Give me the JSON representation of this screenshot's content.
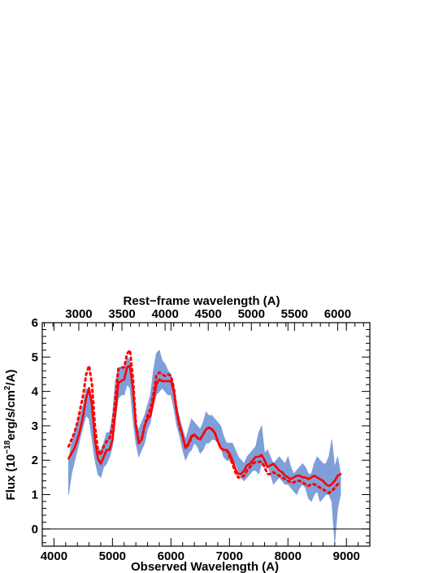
{
  "chart_data": {
    "type": "line",
    "xlabel": "Observed Wavelength (A)",
    "x2label": "Rest−frame wavelength (A)",
    "ylabel_parts": {
      "prefix": "Flux (10",
      "exp1": "−18",
      "mid": "erg/s/cm",
      "exp2": "2",
      "suffix": "/A)"
    },
    "xlim": [
      3800,
      9400
    ],
    "ylim": [
      -0.5,
      6
    ],
    "x_ticks": [
      4000,
      5000,
      6000,
      7000,
      8000,
      9000
    ],
    "y_ticks": [
      0,
      1,
      2,
      3,
      4,
      5,
      6
    ],
    "x2_ticks": [
      3000,
      3500,
      4000,
      4500,
      5000,
      5500,
      6000
    ],
    "x2_factor": 1.475,
    "zero_line": true,
    "colors": {
      "observed": "#7f9fd9",
      "model": "#ff0000",
      "zero_line": "#000000"
    },
    "series": [
      {
        "style": "filled-band",
        "x": [
          4250,
          4300,
          4400,
          4500,
          4550,
          4600,
          4650,
          4700,
          4750,
          4800,
          4850,
          4900,
          4950,
          5000,
          5050,
          5100,
          5150,
          5200,
          5250,
          5300,
          5350,
          5400,
          5450,
          5500,
          5550,
          5600,
          5650,
          5700,
          5750,
          5800,
          5850,
          5900,
          5950,
          6000,
          6050,
          6100,
          6150,
          6200,
          6250,
          6300,
          6350,
          6400,
          6450,
          6500,
          6550,
          6600,
          6650,
          6700,
          6750,
          6800,
          6850,
          6900,
          6950,
          7000,
          7050,
          7100,
          7150,
          7200,
          7250,
          7300,
          7350,
          7400,
          7450,
          7500,
          7550,
          7600,
          7650,
          7700,
          7750,
          7800,
          7850,
          7900,
          7950,
          8000,
          8050,
          8100,
          8150,
          8200,
          8250,
          8300,
          8350,
          8400,
          8450,
          8500,
          8550,
          8600,
          8650,
          8700,
          8750,
          8800,
          8850,
          8900
        ],
        "y_low": [
          1.0,
          1.6,
          2.3,
          3.0,
          3.3,
          3.2,
          2.6,
          2.0,
          1.6,
          1.5,
          1.8,
          1.9,
          2.1,
          2.4,
          3.2,
          3.8,
          3.9,
          3.9,
          4.2,
          4.1,
          3.2,
          2.5,
          2.1,
          2.3,
          2.5,
          2.9,
          3.1,
          3.6,
          3.9,
          4.0,
          4.1,
          4.0,
          3.9,
          3.9,
          3.5,
          3.0,
          2.7,
          2.3,
          2.0,
          2.2,
          2.3,
          2.5,
          2.4,
          2.2,
          2.3,
          2.5,
          2.5,
          2.6,
          2.6,
          2.5,
          2.4,
          2.1,
          2.0,
          2.0,
          2.0,
          1.9,
          1.7,
          1.5,
          1.4,
          1.5,
          1.6,
          1.7,
          1.7,
          1.6,
          1.9,
          1.8,
          1.9,
          1.6,
          1.3,
          1.4,
          1.5,
          1.4,
          1.3,
          1.3,
          1.2,
          1.1,
          1.0,
          1.2,
          1.3,
          1.2,
          0.9,
          0.8,
          1.0,
          1.1,
          0.8,
          0.9,
          1.0,
          1.0,
          0.8,
          -0.4,
          0.6,
          1.0
        ],
        "y_high": [
          2.0,
          2.5,
          3.1,
          3.6,
          4.1,
          4.0,
          3.4,
          2.6,
          2.3,
          2.3,
          2.5,
          2.8,
          2.8,
          3.3,
          4.3,
          4.7,
          4.7,
          4.7,
          5.0,
          4.9,
          3.9,
          3.0,
          2.9,
          3.1,
          3.3,
          3.6,
          3.9,
          4.6,
          5.1,
          5.2,
          4.9,
          4.8,
          4.6,
          4.5,
          4.2,
          3.6,
          3.2,
          2.9,
          2.6,
          2.9,
          3.2,
          3.1,
          3.0,
          2.9,
          3.1,
          3.4,
          3.3,
          3.3,
          3.2,
          3.1,
          3.0,
          2.7,
          2.5,
          2.5,
          2.5,
          2.3,
          2.1,
          2.0,
          1.9,
          2.1,
          2.2,
          2.3,
          2.4,
          2.8,
          3.0,
          2.2,
          2.3,
          2.1,
          1.9,
          2.0,
          2.1,
          2.0,
          1.9,
          2.1,
          1.8,
          1.6,
          1.7,
          1.8,
          1.9,
          1.8,
          1.6,
          1.6,
          1.9,
          2.1,
          2.0,
          1.9,
          1.9,
          2.1,
          2.6,
          1.8,
          2.1,
          1.6
        ]
      },
      {
        "style": "solid",
        "x": [
          4250,
          4300,
          4350,
          4400,
          4450,
          4500,
          4550,
          4600,
          4650,
          4700,
          4750,
          4800,
          4850,
          4900,
          4950,
          5000,
          5050,
          5100,
          5150,
          5200,
          5250,
          5300,
          5350,
          5400,
          5450,
          5500,
          5550,
          5600,
          5650,
          5700,
          5750,
          5800,
          5850,
          5900,
          5950,
          6000,
          6050,
          6100,
          6150,
          6200,
          6250,
          6300,
          6350,
          6400,
          6450,
          6500,
          6550,
          6600,
          6650,
          6700,
          6750,
          6800,
          6850,
          6900,
          6950,
          7000,
          7050,
          7100,
          7150,
          7200,
          7250,
          7300,
          7350,
          7400,
          7450,
          7500,
          7550,
          7600,
          7650,
          7700,
          7750,
          7800,
          7850,
          7900,
          7950,
          8000,
          8050,
          8100,
          8150,
          8200,
          8250,
          8300,
          8350,
          8400,
          8450,
          8500,
          8550,
          8600,
          8650,
          8700,
          8750,
          8800,
          8850,
          8900
        ],
        "y": [
          2.05,
          2.2,
          2.35,
          2.6,
          2.9,
          3.3,
          3.8,
          4.1,
          3.6,
          2.6,
          2.05,
          1.9,
          2.1,
          2.3,
          2.3,
          2.6,
          3.4,
          4.25,
          4.3,
          4.35,
          4.7,
          4.75,
          4.1,
          3.0,
          2.5,
          2.6,
          3.0,
          3.2,
          3.3,
          3.7,
          4.2,
          4.35,
          4.3,
          4.3,
          4.3,
          4.3,
          4.0,
          3.4,
          3.0,
          2.7,
          2.35,
          2.5,
          2.7,
          2.75,
          2.65,
          2.6,
          2.75,
          2.9,
          2.95,
          2.9,
          2.8,
          2.55,
          2.35,
          2.3,
          2.3,
          2.2,
          2.0,
          1.75,
          1.6,
          1.6,
          1.7,
          1.85,
          1.9,
          2.0,
          2.1,
          2.1,
          2.15,
          2.0,
          1.8,
          1.85,
          1.9,
          1.8,
          1.7,
          1.65,
          1.55,
          1.5,
          1.45,
          1.5,
          1.55,
          1.55,
          1.5,
          1.5,
          1.45,
          1.5,
          1.55,
          1.5,
          1.45,
          1.4,
          1.3,
          1.25,
          1.3,
          1.4,
          1.55,
          1.6
        ]
      },
      {
        "style": "dotted",
        "x": [
          4250,
          4300,
          4350,
          4400,
          4450,
          4500,
          4550,
          4600,
          4650,
          4700,
          4750,
          4800,
          4850,
          4900,
          4950,
          5000,
          5050,
          5100,
          5150,
          5200,
          5250,
          5300,
          5350,
          5400,
          5450,
          5500,
          5550,
          5600,
          5650,
          5700,
          5750,
          5800,
          5850,
          5900,
          5950,
          6000,
          6050,
          6100,
          6150,
          6200,
          6250,
          6300,
          6350,
          6400,
          6450,
          6500,
          6550,
          6600,
          6650,
          6700,
          6750,
          6800,
          6850,
          6900,
          6950,
          7000,
          7050,
          7100,
          7150,
          7200,
          7250,
          7300,
          7350,
          7400,
          7450,
          7500,
          7550,
          7600,
          7650,
          7700,
          7750,
          7800,
          7850,
          7900,
          7950,
          8000,
          8050,
          8100,
          8150,
          8200,
          8250,
          8300,
          8350,
          8400,
          8450,
          8500,
          8550,
          8600,
          8650,
          8700,
          8750,
          8800,
          8850,
          8900
        ],
        "y": [
          2.4,
          2.6,
          2.8,
          3.1,
          3.5,
          3.9,
          4.5,
          4.75,
          4.2,
          3.0,
          2.3,
          2.15,
          2.4,
          2.55,
          2.65,
          3.0,
          3.8,
          4.65,
          4.7,
          4.7,
          5.1,
          5.2,
          4.4,
          3.1,
          2.5,
          2.6,
          3.0,
          3.3,
          3.5,
          3.9,
          4.45,
          4.55,
          4.5,
          4.45,
          4.5,
          4.45,
          4.1,
          3.4,
          2.95,
          2.7,
          2.35,
          2.45,
          2.65,
          2.75,
          2.65,
          2.6,
          2.75,
          2.9,
          2.95,
          2.9,
          2.8,
          2.55,
          2.35,
          2.3,
          2.3,
          2.1,
          1.9,
          1.65,
          1.5,
          1.5,
          1.55,
          1.7,
          1.8,
          1.9,
          1.95,
          1.95,
          1.95,
          1.8,
          1.6,
          1.6,
          1.65,
          1.6,
          1.55,
          1.5,
          1.45,
          1.4,
          1.35,
          1.35,
          1.4,
          1.4,
          1.35,
          1.3,
          1.25,
          1.3,
          1.3,
          1.25,
          1.2,
          1.15,
          1.1,
          1.05,
          1.1,
          1.2,
          1.3,
          1.35
        ]
      }
    ]
  }
}
